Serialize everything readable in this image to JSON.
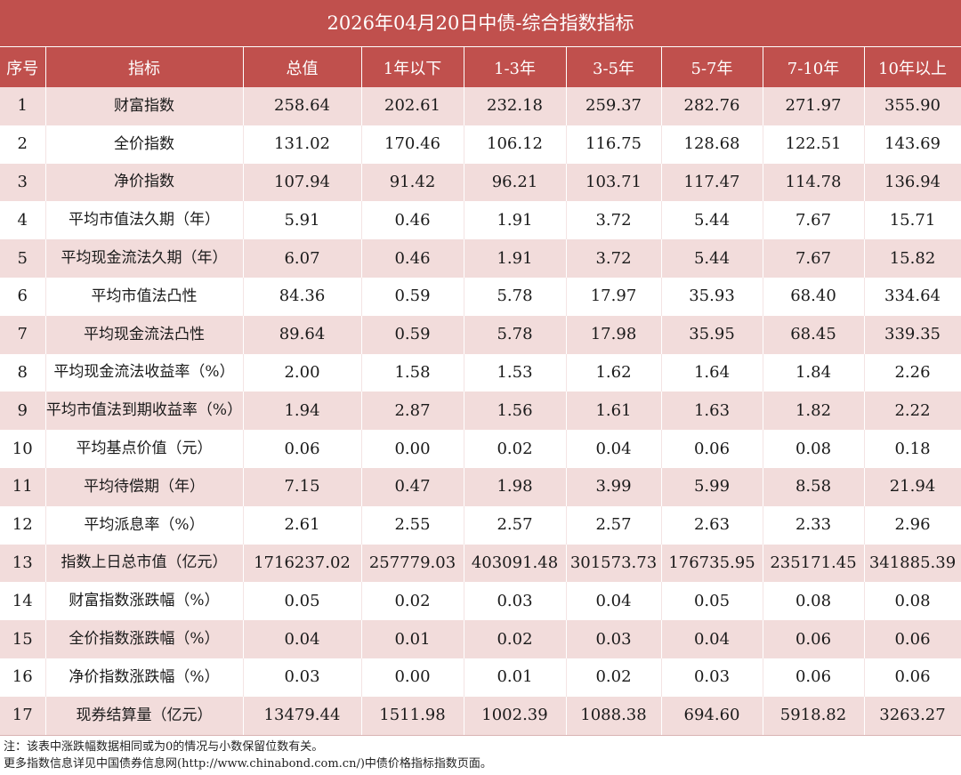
{
  "title": "2026年04月20日中债-综合指数指标",
  "headers": [
    "序号",
    "指标",
    "总值",
    "1年以下",
    "1-3年",
    "3-5年",
    "5-7年",
    "7-10年",
    "10年以上"
  ],
  "rows": [
    {
      "no": "1",
      "name": "财富指数",
      "values": [
        "258.64",
        "202.61",
        "232.18",
        "259.37",
        "282.76",
        "271.97",
        "355.90"
      ]
    },
    {
      "no": "2",
      "name": "全价指数",
      "values": [
        "131.02",
        "170.46",
        "106.12",
        "116.75",
        "128.68",
        "122.51",
        "143.69"
      ]
    },
    {
      "no": "3",
      "name": "净价指数",
      "values": [
        "107.94",
        "91.42",
        "96.21",
        "103.71",
        "117.47",
        "114.78",
        "136.94"
      ]
    },
    {
      "no": "4",
      "name": "平均市值法久期（年）",
      "values": [
        "5.91",
        "0.46",
        "1.91",
        "3.72",
        "5.44",
        "7.67",
        "15.71"
      ]
    },
    {
      "no": "5",
      "name": "平均现金流法久期（年）",
      "values": [
        "6.07",
        "0.46",
        "1.91",
        "3.72",
        "5.44",
        "7.67",
        "15.82"
      ]
    },
    {
      "no": "6",
      "name": "平均市值法凸性",
      "values": [
        "84.36",
        "0.59",
        "5.78",
        "17.97",
        "35.93",
        "68.40",
        "334.64"
      ]
    },
    {
      "no": "7",
      "name": "平均现金流法凸性",
      "values": [
        "89.64",
        "0.59",
        "5.78",
        "17.98",
        "35.95",
        "68.45",
        "339.35"
      ]
    },
    {
      "no": "8",
      "name": "平均现金流法收益率（%）",
      "values": [
        "2.00",
        "1.58",
        "1.53",
        "1.62",
        "1.64",
        "1.84",
        "2.26"
      ]
    },
    {
      "no": "9",
      "name": "平均市值法到期收益率（%）",
      "values": [
        "1.94",
        "2.87",
        "1.56",
        "1.61",
        "1.63",
        "1.82",
        "2.22"
      ]
    },
    {
      "no": "10",
      "name": "平均基点价值（元）",
      "values": [
        "0.06",
        "0.00",
        "0.02",
        "0.04",
        "0.06",
        "0.08",
        "0.18"
      ]
    },
    {
      "no": "11",
      "name": "平均待偿期（年）",
      "values": [
        "7.15",
        "0.47",
        "1.98",
        "3.99",
        "5.99",
        "8.58",
        "21.94"
      ]
    },
    {
      "no": "12",
      "name": "平均派息率（%）",
      "values": [
        "2.61",
        "2.55",
        "2.57",
        "2.57",
        "2.63",
        "2.33",
        "2.96"
      ]
    },
    {
      "no": "13",
      "name": "指数上日总市值（亿元）",
      "values": [
        "1716237.02",
        "257779.03",
        "403091.48",
        "301573.73",
        "176735.95",
        "235171.45",
        "341885.39"
      ]
    },
    {
      "no": "14",
      "name": "财富指数涨跌幅（%）",
      "values": [
        "0.05",
        "0.02",
        "0.03",
        "0.04",
        "0.05",
        "0.08",
        "0.08"
      ]
    },
    {
      "no": "15",
      "name": "全价指数涨跌幅（%）",
      "values": [
        "0.04",
        "0.01",
        "0.02",
        "0.03",
        "0.04",
        "0.06",
        "0.06"
      ]
    },
    {
      "no": "16",
      "name": "净价指数涨跌幅（%）",
      "values": [
        "0.03",
        "0.00",
        "0.01",
        "0.02",
        "0.03",
        "0.06",
        "0.06"
      ]
    },
    {
      "no": "17",
      "name": "现券结算量（亿元）",
      "values": [
        "13479.44",
        "1511.98",
        "1002.39",
        "1088.38",
        "694.60",
        "5918.82",
        "3263.27"
      ]
    }
  ],
  "notes": [
    "注：该表中涨跌幅数据相同或为0的情况与小数保留位数有关。",
    "更多指数信息详见中国债券信息网(http://www.chinabond.com.cn/)中债价格指标指数页面。"
  ],
  "colors": {
    "header_bg": "#c0504d",
    "odd_row_bg": "#f2dcdb",
    "even_row_bg": "#ffffff"
  }
}
